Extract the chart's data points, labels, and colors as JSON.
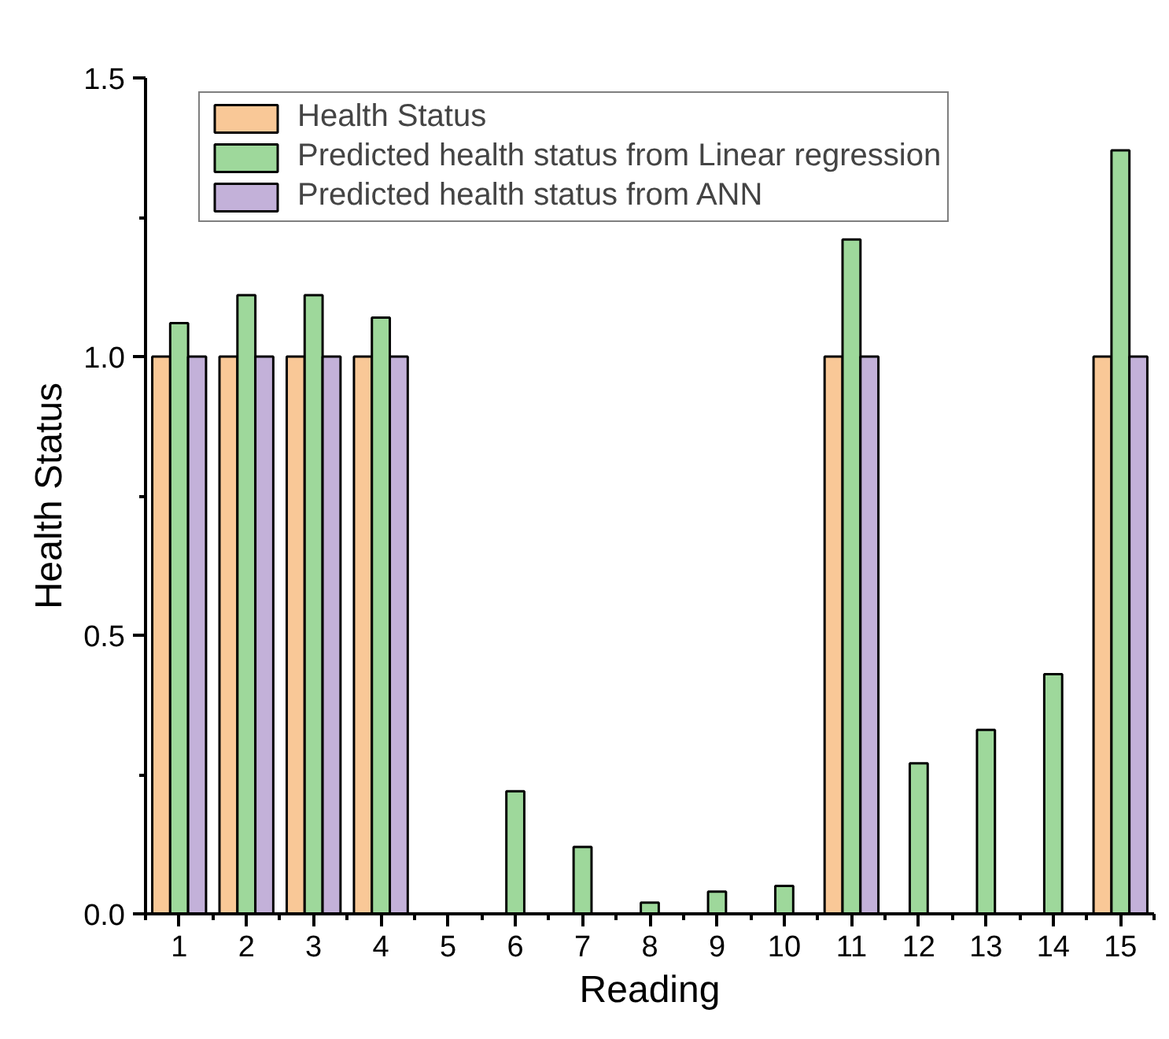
{
  "chart_data": {
    "type": "bar",
    "xlabel": "Reading",
    "ylabel": "Health Status",
    "x": [
      1,
      2,
      3,
      4,
      5,
      6,
      7,
      8,
      9,
      10,
      11,
      12,
      13,
      14,
      15
    ],
    "series": [
      {
        "name": "Health Status",
        "color": "#f9c897",
        "values": [
          1,
          1,
          1,
          1,
          0,
          0,
          0,
          0,
          0,
          0,
          1,
          0,
          0,
          0,
          1
        ]
      },
      {
        "name": "Predicted health status from Linear regression",
        "color": "#9ed89b",
        "values": [
          1.06,
          1.11,
          1.11,
          1.07,
          0,
          0.22,
          0.12,
          0.02,
          0.04,
          0.05,
          1.21,
          0.27,
          0.33,
          0.43,
          1.37
        ]
      },
      {
        "name": "Predicted health status from ANN",
        "color": "#c3b1d9",
        "values": [
          1,
          1,
          1,
          1,
          0,
          0,
          0,
          0,
          0,
          0,
          1,
          0,
          0,
          0,
          1
        ]
      }
    ],
    "xlim": [
      0.5,
      15.5
    ],
    "xticks": [
      1,
      2,
      3,
      4,
      5,
      6,
      7,
      8,
      9,
      10,
      11,
      12,
      13,
      14,
      15,
      {
        "value": 0.5,
        "label": null
      },
      {
        "value": 1.5,
        "label": null
      },
      {
        "value": 2.5,
        "label": null
      },
      {
        "value": 3.5,
        "label": null
      },
      {
        "value": 4.5,
        "label": null
      },
      {
        "value": 5.5,
        "label": null
      },
      {
        "value": 6.5,
        "label": null
      },
      {
        "value": 7.5,
        "label": null
      },
      {
        "value": 8.5,
        "label": null
      },
      {
        "value": 9.5,
        "label": null
      },
      {
        "value": 10.5,
        "label": null
      },
      {
        "value": 11.5,
        "label": null
      },
      {
        "value": 12.5,
        "label": null
      },
      {
        "value": 13.5,
        "label": null
      },
      {
        "value": 14.5,
        "label": null
      },
      {
        "value": 15.5,
        "label": null
      }
    ],
    "ylim": [
      0,
      1.5
    ],
    "yticks": [
      {
        "value": 0,
        "label": "0.0"
      },
      {
        "value": 0.5,
        "label": "0.5"
      },
      {
        "value": 1,
        "label": "1.0"
      },
      {
        "value": 1.5,
        "label": "1.5"
      },
      {
        "value": 0.25,
        "label": null
      },
      {
        "value": 0.75,
        "label": null
      },
      {
        "value": 1.25,
        "label": null
      }
    ],
    "grid": false,
    "legend": "top"
  }
}
